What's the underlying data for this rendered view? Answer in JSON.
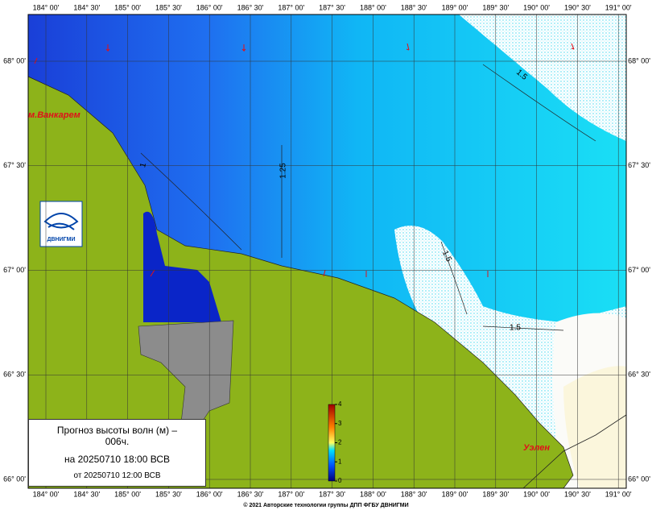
{
  "map": {
    "lon_labels": [
      "184° 00'",
      "184° 30'",
      "185° 00'",
      "185° 30'",
      "186° 00'",
      "186° 30'",
      "187° 00'",
      "187° 30'",
      "188° 00'",
      "188° 30'",
      "189° 00'",
      "189° 30'",
      "190° 00'",
      "190° 30'",
      "191° 00'"
    ],
    "lat_labels": [
      "68° 00'",
      "67° 30'",
      "67° 00'",
      "66° 30'",
      "66° 00'"
    ],
    "contour_labels": [
      "1",
      "1.25",
      "1.5",
      "1.5",
      "1.5"
    ],
    "places": [
      "м.Ванкарем",
      "Уэлен"
    ],
    "logo": "ДВНИГМИ",
    "legend": {
      "title": "Прогноз высоты волн (м) – 006ч.",
      "valid": "на 20250710 18:00 ВСВ",
      "issued": "от 20250710 12:00 ВСВ"
    },
    "colorbar": {
      "range": [
        0,
        4
      ],
      "ticks": [
        0,
        1,
        2,
        3,
        4
      ]
    },
    "copyright": "© 2021 Авторские технологии группы ДПП ФГБУ ДВНИГМИ"
  }
}
